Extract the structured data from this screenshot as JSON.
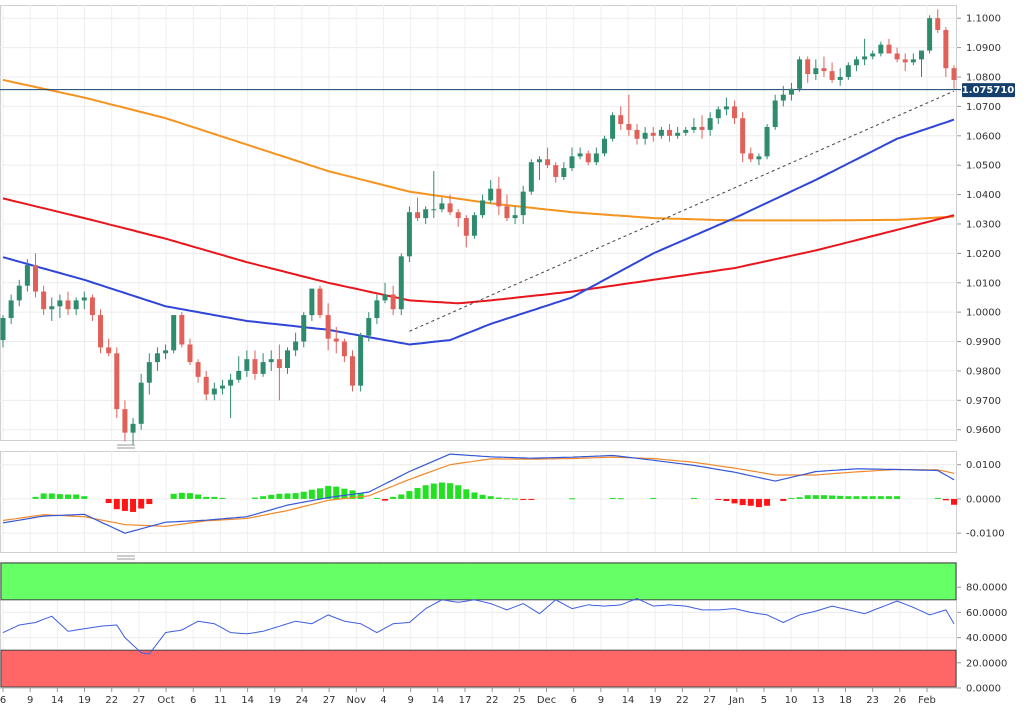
{
  "colors": {
    "up": "#2e8b6e",
    "down": "#e0605a",
    "sma20": "#2f45d8",
    "sma100": "#e8161c",
    "sma200": "#f5931f",
    "price_tag_bg": "#15406e",
    "macd_line": "#3457d5",
    "macd_signal": "#f08a2c",
    "hist_pos": "#22e022",
    "hist_neg": "#ff1515",
    "rsi_line": "#3c5fe0",
    "rsi_overbought": "#66ff66",
    "rsi_oversold": "#ff6666"
  },
  "price_tag": "1.075710",
  "x_labels": [
    "6",
    "9",
    "14",
    "19",
    "22",
    "27",
    "Oct",
    "6",
    "11",
    "14",
    "19",
    "24",
    "27",
    "Nov",
    "4",
    "9",
    "14",
    "17",
    "22",
    "25",
    "Dec",
    "6",
    "9",
    "14",
    "19",
    "22",
    "27",
    "Jan",
    "5",
    "10",
    "13",
    "18",
    "23",
    "26",
    "Feb"
  ],
  "chart_data": [
    {
      "type": "candlestick",
      "y_ticks": [
        "1.1000",
        "1.0900",
        "1.0800",
        "1.0700",
        "1.0600",
        "1.0500",
        "1.0400",
        "1.0300",
        "1.0200",
        "1.0100",
        "1.0000",
        "0.9900",
        "0.9800",
        "0.9700",
        "0.9600"
      ],
      "ylim": [
        0.9565,
        1.1045
      ],
      "candles": [
        [
          0.9905,
          0.999,
          0.988,
          0.998
        ],
        [
          0.998,
          1.006,
          0.996,
          1.004
        ],
        [
          1.004,
          1.011,
          1.002,
          1.009
        ],
        [
          1.009,
          1.018,
          1.007,
          1.016
        ],
        [
          1.016,
          1.02,
          1.005,
          1.007
        ],
        [
          1.007,
          1.009,
          0.999,
          1.001
        ],
        [
          1.001,
          1.005,
          0.997,
          1.002
        ],
        [
          1.002,
          1.006,
          0.998,
          1.004
        ],
        [
          1.004,
          1.007,
          0.999,
          1.001
        ],
        [
          1.001,
          1.005,
          0.999,
          1.004
        ],
        [
          1.004,
          1.007,
          1.001,
          1.005
        ],
        [
          1.005,
          1.006,
          0.997,
          0.999
        ],
        [
          0.999,
          1.001,
          0.986,
          0.988
        ],
        [
          0.988,
          0.991,
          0.985,
          0.986
        ],
        [
          0.986,
          0.988,
          0.964,
          0.967
        ],
        [
          0.967,
          0.97,
          0.956,
          0.959
        ],
        [
          0.959,
          0.964,
          0.955,
          0.962
        ],
        [
          0.962,
          0.979,
          0.96,
          0.976
        ],
        [
          0.976,
          0.986,
          0.972,
          0.983
        ],
        [
          0.983,
          0.988,
          0.98,
          0.986
        ],
        [
          0.986,
          0.989,
          0.984,
          0.987
        ],
        [
          0.987,
          0.999,
          0.986,
          0.999
        ],
        [
          0.999,
          1.0,
          0.988,
          0.989
        ],
        [
          0.989,
          0.991,
          0.982,
          0.983
        ],
        [
          0.983,
          0.984,
          0.976,
          0.978
        ],
        [
          0.978,
          0.98,
          0.97,
          0.972
        ],
        [
          0.972,
          0.976,
          0.97,
          0.974
        ],
        [
          0.974,
          0.977,
          0.972,
          0.975
        ],
        [
          0.975,
          0.979,
          0.964,
          0.977
        ],
        [
          0.977,
          0.985,
          0.976,
          0.98
        ],
        [
          0.98,
          0.987,
          0.978,
          0.984
        ],
        [
          0.984,
          0.987,
          0.977,
          0.979
        ],
        [
          0.979,
          0.986,
          0.978,
          0.983
        ],
        [
          0.983,
          0.987,
          0.98,
          0.984
        ],
        [
          0.984,
          0.989,
          0.97,
          0.981
        ],
        [
          0.981,
          0.988,
          0.979,
          0.987
        ],
        [
          0.987,
          0.993,
          0.985,
          0.99
        ],
        [
          0.99,
          1.0,
          0.988,
          0.999
        ],
        [
          0.999,
          1.008,
          0.997,
          1.008
        ],
        [
          1.008,
          1.009,
          0.998,
          0.999
        ],
        [
          0.999,
          1.003,
          0.987,
          0.991
        ],
        [
          0.991,
          0.995,
          0.986,
          0.99
        ],
        [
          0.99,
          0.991,
          0.983,
          0.985
        ],
        [
          0.985,
          0.987,
          0.973,
          0.975
        ],
        [
          0.975,
          0.993,
          0.973,
          0.992
        ],
        [
          0.992,
          1.0,
          0.99,
          0.998
        ],
        [
          0.998,
          1.006,
          0.996,
          1.004
        ],
        [
          1.004,
          1.01,
          1.003,
          1.006
        ],
        [
          1.006,
          1.009,
          0.999,
          1.001
        ],
        [
          1.001,
          1.02,
          0.999,
          1.019
        ],
        [
          1.019,
          1.036,
          1.017,
          1.034
        ],
        [
          1.034,
          1.039,
          1.031,
          1.032
        ],
        [
          1.032,
          1.036,
          1.03,
          1.035
        ],
        [
          1.035,
          1.048,
          1.032,
          1.035
        ],
        [
          1.035,
          1.039,
          1.034,
          1.037
        ],
        [
          1.037,
          1.04,
          1.033,
          1.034
        ],
        [
          1.034,
          1.035,
          1.029,
          1.032
        ],
        [
          1.032,
          1.033,
          1.022,
          1.026
        ],
        [
          1.026,
          1.034,
          1.025,
          1.033
        ],
        [
          1.033,
          1.04,
          1.032,
          1.038
        ],
        [
          1.038,
          1.045,
          1.037,
          1.042
        ],
        [
          1.042,
          1.046,
          1.033,
          1.036
        ],
        [
          1.036,
          1.04,
          1.031,
          1.032
        ],
        [
          1.032,
          1.036,
          1.03,
          1.033
        ],
        [
          1.033,
          1.043,
          1.03,
          1.041
        ],
        [
          1.041,
          1.052,
          1.04,
          1.051
        ],
        [
          1.051,
          1.053,
          1.045,
          1.052
        ],
        [
          1.052,
          1.056,
          1.049,
          1.05
        ],
        [
          1.05,
          1.051,
          1.044,
          1.046
        ],
        [
          1.046,
          1.051,
          1.045,
          1.049
        ],
        [
          1.049,
          1.056,
          1.048,
          1.053
        ],
        [
          1.053,
          1.056,
          1.052,
          1.054
        ],
        [
          1.054,
          1.055,
          1.05,
          1.051
        ],
        [
          1.051,
          1.056,
          1.05,
          1.054
        ],
        [
          1.054,
          1.06,
          1.053,
          1.059
        ],
        [
          1.059,
          1.068,
          1.058,
          1.067
        ],
        [
          1.067,
          1.07,
          1.062,
          1.064
        ],
        [
          1.064,
          1.074,
          1.06,
          1.062
        ],
        [
          1.062,
          1.064,
          1.057,
          1.059
        ],
        [
          1.059,
          1.063,
          1.057,
          1.061
        ],
        [
          1.061,
          1.063,
          1.058,
          1.06
        ],
        [
          1.06,
          1.063,
          1.059,
          1.062
        ],
        [
          1.062,
          1.064,
          1.058,
          1.06
        ],
        [
          1.06,
          1.063,
          1.059,
          1.061
        ],
        [
          1.061,
          1.063,
          1.06,
          1.062
        ],
        [
          1.062,
          1.066,
          1.061,
          1.063
        ],
        [
          1.063,
          1.067,
          1.059,
          1.062
        ],
        [
          1.062,
          1.068,
          1.06,
          1.066
        ],
        [
          1.066,
          1.07,
          1.064,
          1.069
        ],
        [
          1.069,
          1.073,
          1.067,
          1.07
        ],
        [
          1.07,
          1.072,
          1.064,
          1.066
        ],
        [
          1.066,
          1.068,
          1.051,
          1.054
        ],
        [
          1.054,
          1.056,
          1.051,
          1.052
        ],
        [
          1.052,
          1.054,
          1.05,
          1.053
        ],
        [
          1.053,
          1.064,
          1.052,
          1.063
        ],
        [
          1.063,
          1.074,
          1.062,
          1.072
        ],
        [
          1.072,
          1.077,
          1.07,
          1.074
        ],
        [
          1.074,
          1.078,
          1.072,
          1.076
        ],
        [
          1.076,
          1.087,
          1.075,
          1.086
        ],
        [
          1.086,
          1.087,
          1.078,
          1.081
        ],
        [
          1.081,
          1.086,
          1.079,
          1.083
        ],
        [
          1.083,
          1.087,
          1.08,
          1.082
        ],
        [
          1.082,
          1.085,
          1.078,
          1.079
        ],
        [
          1.079,
          1.083,
          1.077,
          1.08
        ],
        [
          1.08,
          1.085,
          1.079,
          1.084
        ],
        [
          1.084,
          1.087,
          1.082,
          1.086
        ],
        [
          1.086,
          1.093,
          1.084,
          1.087
        ],
        [
          1.087,
          1.089,
          1.086,
          1.088
        ],
        [
          1.088,
          1.092,
          1.087,
          1.091
        ],
        [
          1.091,
          1.093,
          1.089,
          1.088
        ],
        [
          1.088,
          1.09,
          1.085,
          1.086
        ],
        [
          1.086,
          1.088,
          1.082,
          1.085
        ],
        [
          1.085,
          1.088,
          1.084,
          1.086
        ],
        [
          1.086,
          1.089,
          1.08,
          1.089
        ],
        [
          1.089,
          1.101,
          1.088,
          1.1
        ],
        [
          1.1,
          1.103,
          1.095,
          1.096
        ],
        [
          1.096,
          1.097,
          1.08,
          1.083
        ],
        [
          1.083,
          1.084,
          1.076,
          1.079
        ]
      ],
      "sma_20": {
        "x": [
          0,
          10,
          20,
          30,
          40,
          50,
          55,
          60,
          70,
          80,
          90,
          100,
          110,
          117
        ],
        "y": [
          1.0187,
          1.011,
          1.002,
          0.997,
          0.994,
          0.989,
          0.9905,
          0.996,
          1.005,
          1.02,
          1.032,
          1.045,
          1.059,
          1.0655
        ]
      },
      "sma_100": {
        "x": [
          0,
          10,
          20,
          30,
          40,
          50,
          56,
          60,
          70,
          80,
          90,
          100,
          110,
          117
        ],
        "y": [
          1.0387,
          1.032,
          1.025,
          1.017,
          1.01,
          1.004,
          1.003,
          1.004,
          1.007,
          1.011,
          1.015,
          1.021,
          1.028,
          1.033
        ]
      },
      "sma_200": {
        "x": [
          0,
          10,
          20,
          30,
          40,
          50,
          60,
          70,
          80,
          90,
          100,
          110,
          117
        ],
        "y": [
          1.079,
          1.073,
          1.066,
          1.057,
          1.048,
          1.041,
          1.037,
          1.034,
          1.032,
          1.0312,
          1.0312,
          1.0314,
          1.0325
        ]
      },
      "trendline": {
        "x": [
          50,
          117
        ],
        "y": [
          0.9935,
          1.0752
        ]
      },
      "horizontal_line": 1.0757
    },
    {
      "type": "bar+line",
      "name": "",
      "y_ticks": [
        "0.0100",
        "0.0000",
        "-0.0100"
      ],
      "ylim": [
        -0.0155,
        0.014
      ],
      "histogram_x": [
        4,
        5,
        6,
        7,
        8,
        9,
        10,
        13,
        14,
        15,
        16,
        17,
        18,
        21,
        22,
        23,
        24,
        25,
        26,
        27,
        31,
        32,
        33,
        34,
        35,
        36,
        37,
        38,
        39,
        40,
        41,
        42,
        43,
        44,
        46,
        47,
        48,
        49,
        50,
        51,
        52,
        53,
        54,
        55,
        56,
        57,
        58,
        59,
        60,
        61,
        62,
        63,
        64,
        65,
        70,
        75,
        76,
        80,
        85,
        88,
        89,
        90,
        91,
        92,
        93,
        94,
        96,
        97,
        98,
        99,
        100,
        101,
        102,
        103,
        104,
        105,
        106,
        107,
        108,
        109,
        110,
        115,
        116,
        117
      ],
      "histogram": [
        0.0006,
        0.0016,
        0.0016,
        0.0014,
        0.0013,
        0.0013,
        0.0008,
        -0.0012,
        -0.003,
        -0.0035,
        -0.0038,
        -0.0028,
        -0.0015,
        0.0015,
        0.0018,
        0.0017,
        0.0013,
        0.0006,
        0.0006,
        0.0003,
        0.0004,
        0.0008,
        0.0012,
        0.0015,
        0.0016,
        0.0017,
        0.0021,
        0.0027,
        0.0031,
        0.0038,
        0.0036,
        0.003,
        0.0025,
        0.0016,
        0.0003,
        -0.0005,
        0.0006,
        0.0013,
        0.0023,
        0.0032,
        0.004,
        0.0045,
        0.0048,
        0.0046,
        0.004,
        0.0028,
        0.0019,
        0.0012,
        0.0008,
        0.0004,
        0.0002,
        0.0001,
        -0.0002,
        -0.0003,
        0.0002,
        0.0003,
        0.0002,
        0.0003,
        0.0003,
        -0.0003,
        -0.0006,
        -0.0013,
        -0.0018,
        -0.002,
        -0.0024,
        -0.002,
        -0.0006,
        0.0003,
        0.0005,
        0.0011,
        0.0011,
        0.0011,
        0.001,
        0.0009,
        0.0008,
        0.0008,
        0.0008,
        0.0008,
        0.0008,
        0.0008,
        0.0008,
        0.0003,
        -0.0004,
        -0.0017
      ],
      "macd": {
        "x": [
          0,
          5,
          10,
          15,
          20,
          25,
          30,
          35,
          40,
          45,
          50,
          55,
          60,
          65,
          70,
          75,
          80,
          85,
          90,
          95,
          100,
          105,
          110,
          115,
          117
        ],
        "y": [
          -0.007,
          -0.005,
          -0.0045,
          -0.01,
          -0.0068,
          -0.0062,
          -0.0052,
          -0.0018,
          0.0004,
          0.002,
          0.008,
          0.0131,
          0.0123,
          0.0119,
          0.0122,
          0.0127,
          0.0113,
          0.0098,
          0.0078,
          0.0052,
          0.008,
          0.0088,
          0.0086,
          0.0083,
          0.0056
        ]
      },
      "signal": {
        "x": [
          0,
          5,
          10,
          15,
          20,
          25,
          30,
          35,
          40,
          45,
          50,
          55,
          60,
          65,
          70,
          75,
          80,
          85,
          90,
          95,
          100,
          105,
          110,
          115,
          117
        ],
        "y": [
          -0.0063,
          -0.0046,
          -0.0052,
          -0.0075,
          -0.008,
          -0.0064,
          -0.0057,
          -0.0034,
          -0.0004,
          0.0009,
          0.0057,
          0.01,
          0.0117,
          0.0116,
          0.0118,
          0.0122,
          0.0118,
          0.0107,
          0.009,
          0.007,
          0.007,
          0.0079,
          0.0086,
          0.0085,
          0.0075
        ]
      }
    },
    {
      "type": "line",
      "name": "",
      "y_ticks": [
        "80.0000",
        "60.0000",
        "40.0000",
        "20.0000",
        "0.0000"
      ],
      "ylim": [
        0,
        100
      ],
      "overbought": 70,
      "oversold": 30,
      "rsi": {
        "x": [
          0,
          2,
          4,
          6,
          8,
          10,
          12,
          14,
          15,
          16,
          17,
          18,
          20,
          22,
          24,
          26,
          28,
          30,
          32,
          34,
          36,
          38,
          40,
          42,
          44,
          46,
          48,
          50,
          52,
          54,
          56,
          58,
          60,
          62,
          64,
          66,
          68,
          70,
          72,
          74,
          76,
          78,
          80,
          82,
          84,
          86,
          88,
          90,
          92,
          94,
          96,
          98,
          100,
          102,
          104,
          106,
          108,
          110,
          112,
          114,
          116,
          117
        ],
        "y": [
          44,
          50,
          52,
          57,
          45,
          47,
          49,
          50,
          40,
          34,
          28,
          27,
          44,
          46,
          53,
          51,
          44,
          43,
          45,
          49,
          53,
          51,
          58,
          53,
          51,
          44,
          51,
          52,
          63,
          70,
          68,
          70,
          67,
          62,
          67,
          59,
          70,
          63,
          66,
          65,
          66,
          71,
          65,
          66,
          65,
          62,
          62,
          63,
          60,
          58,
          52,
          58,
          61,
          65,
          62,
          59,
          64,
          69,
          64,
          58,
          62,
          51
        ]
      }
    }
  ]
}
